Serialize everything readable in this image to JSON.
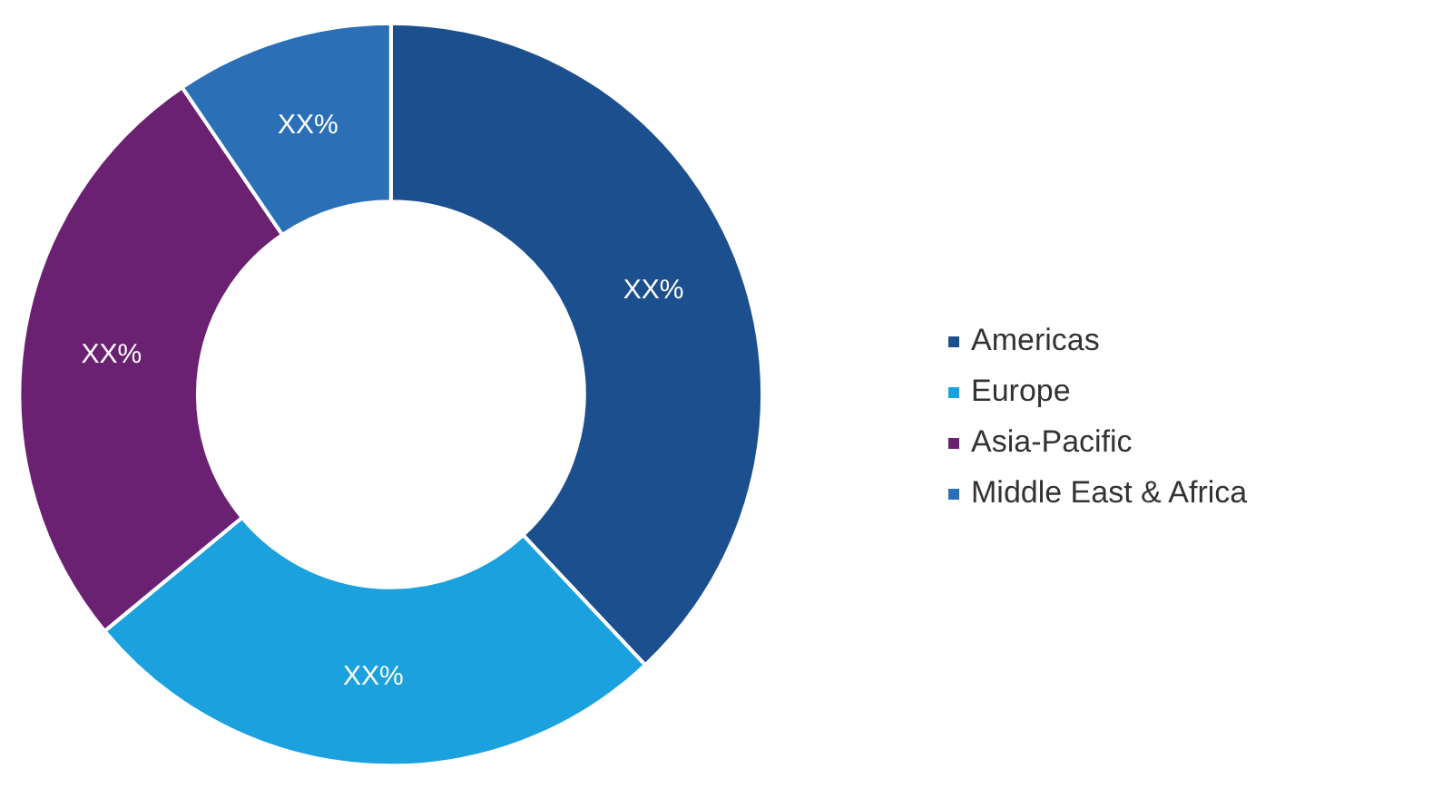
{
  "chart_data": {
    "type": "donut",
    "categories": [
      "Americas",
      "Europe",
      "Asia-Pacific",
      "Middle East & Africa"
    ],
    "values": [
      38,
      26,
      26.5,
      9.5
    ],
    "colors": [
      "#1c4f8e",
      "#1ba1dd",
      "#6b2171",
      "#2b70b6"
    ],
    "value_labels": [
      "XX%",
      "XX%",
      "XX%",
      "XX%"
    ],
    "legend": "right"
  }
}
